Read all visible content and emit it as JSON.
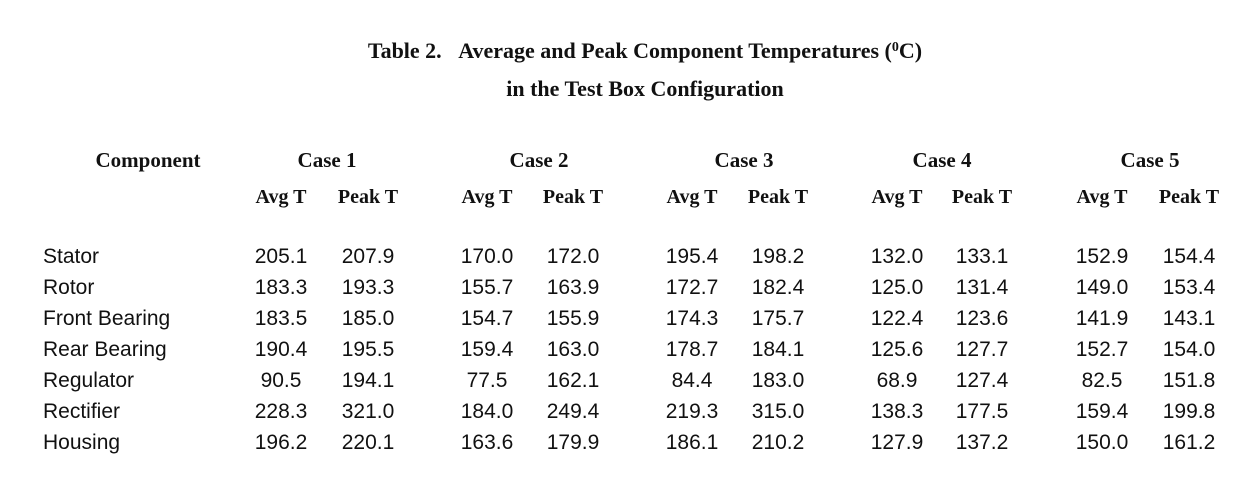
{
  "title": {
    "label": "Table 2.",
    "before_superscript": "Average and Peak Component Temperatures (",
    "superscript": "0",
    "after_superscript": "C)",
    "line2": "in the Test Box Configuration"
  },
  "table": {
    "component_header": "Component",
    "cases": [
      {
        "name": "Case 1",
        "columns": [
          "Avg T",
          "Peak T"
        ]
      },
      {
        "name": "Case 2",
        "columns": [
          "Avg T",
          "Peak T"
        ]
      },
      {
        "name": "Case 3",
        "columns": [
          "Avg T",
          "Peak T"
        ]
      },
      {
        "name": "Case 4",
        "columns": [
          "Avg T",
          "Peak T"
        ]
      },
      {
        "name": "Case 5",
        "columns": [
          "Avg T",
          "Peak T"
        ]
      }
    ],
    "rows": [
      {
        "component": "Stator",
        "values": [
          "205.1",
          "207.9",
          "170.0",
          "172.0",
          "195.4",
          "198.2",
          "132.0",
          "133.1",
          "152.9",
          "154.4"
        ]
      },
      {
        "component": "Rotor",
        "values": [
          "183.3",
          "193.3",
          "155.7",
          "163.9",
          "172.7",
          "182.4",
          "125.0",
          "131.4",
          "149.0",
          "153.4"
        ]
      },
      {
        "component": "Front Bearing",
        "values": [
          "183.5",
          "185.0",
          "154.7",
          "155.9",
          "174.3",
          "175.7",
          "122.4",
          "123.6",
          "141.9",
          "143.1"
        ]
      },
      {
        "component": "Rear Bearing",
        "values": [
          "190.4",
          "195.5",
          "159.4",
          "163.0",
          "178.7",
          "184.1",
          "125.6",
          "127.7",
          "152.7",
          "154.0"
        ]
      },
      {
        "component": "Regulator",
        "values": [
          "90.5",
          "194.1",
          "77.5",
          "162.1",
          "84.4",
          "183.0",
          "68.9",
          "127.4",
          "82.5",
          "151.8"
        ]
      },
      {
        "component": "Rectifier",
        "values": [
          "228.3",
          "321.0",
          "184.0",
          "249.4",
          "219.3",
          "315.0",
          "138.3",
          "177.5",
          "159.4",
          "199.8"
        ]
      },
      {
        "component": "Housing",
        "values": [
          "196.2",
          "220.1",
          "163.6",
          "179.9",
          "186.1",
          "210.2",
          "127.9",
          "137.2",
          "150.0",
          "161.2"
        ]
      }
    ]
  }
}
